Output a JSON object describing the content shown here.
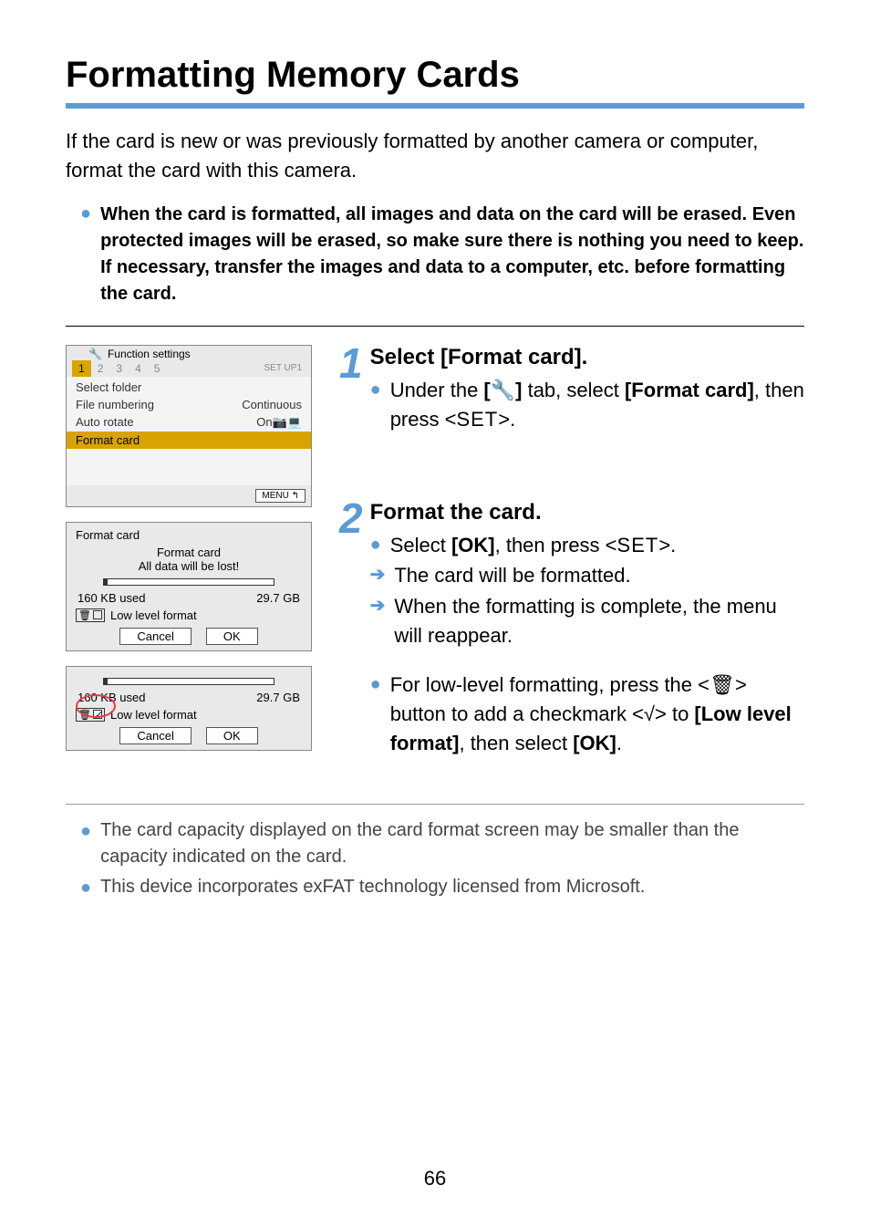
{
  "title": "Formatting Memory Cards",
  "intro": "If the card is new or was previously formatted by another camera or computer, format the card with this camera.",
  "warning": "When the card is formatted, all images and data on the card will be erased. Even protected images will be erased, so make sure there is nothing you need to keep. If necessary, transfer the images and data to a computer, etc. before formatting the card.",
  "menu_shot": {
    "header": "Function settings",
    "tabs": [
      "1",
      "2",
      "3",
      "4",
      "5"
    ],
    "active_tab": 0,
    "setup_label": "SET UP1",
    "rows": [
      {
        "label": "Select folder",
        "value": ""
      },
      {
        "label": "File numbering",
        "value": "Continuous"
      },
      {
        "label": "Auto rotate",
        "value": "On📷💻"
      },
      {
        "label": "Format card",
        "value": "",
        "highlight": true
      }
    ],
    "footer_btn": "MENU ↰"
  },
  "dlg1": {
    "title": "Format card",
    "sub1": "Format card",
    "sub2": "All data will be lost!",
    "used": "160 KB used",
    "total": "29.7 GB",
    "llf": "Low level format",
    "cancel": "Cancel",
    "ok": "OK",
    "bar_used_pct": 2
  },
  "dlg2": {
    "used": "160 KB used",
    "total": "29.7 GB",
    "llf": "Low level format",
    "cancel": "Cancel",
    "ok": "OK",
    "bar_used_pct": 2
  },
  "steps": [
    {
      "num": "1",
      "title": "Select [Format card].",
      "lines": [
        {
          "type": "bullet",
          "html": "Under the <b>[🔧]</b> tab, select <b>[Format card]</b>, then press <<span class='setkey'>SET</span>>."
        }
      ]
    },
    {
      "num": "2",
      "title": "Format the card.",
      "lines": [
        {
          "type": "bullet",
          "html": "Select <b>[OK]</b>, then press <<span class='setkey'>SET</span>>."
        },
        {
          "type": "arrow",
          "html": "The card will be formatted."
        },
        {
          "type": "arrow",
          "html": "When the formatting is complete, the menu will reappear."
        }
      ],
      "lines2": [
        {
          "type": "bullet",
          "html": "For low-level formatting, press the <<span class='trash'>🗑</span>> button to add a checkmark <<span class='check'>√</span>> to <b>[Low level format]</b>, then select <b>[OK]</b>."
        }
      ]
    }
  ],
  "notes": [
    "The card capacity displayed on the card format screen may be smaller than the capacity indicated on the card.",
    "This device incorporates exFAT technology licensed from Microsoft."
  ],
  "page_number": "66",
  "colors": {
    "accent": "#5b9bd5",
    "menu_hl": "#d9a300"
  }
}
